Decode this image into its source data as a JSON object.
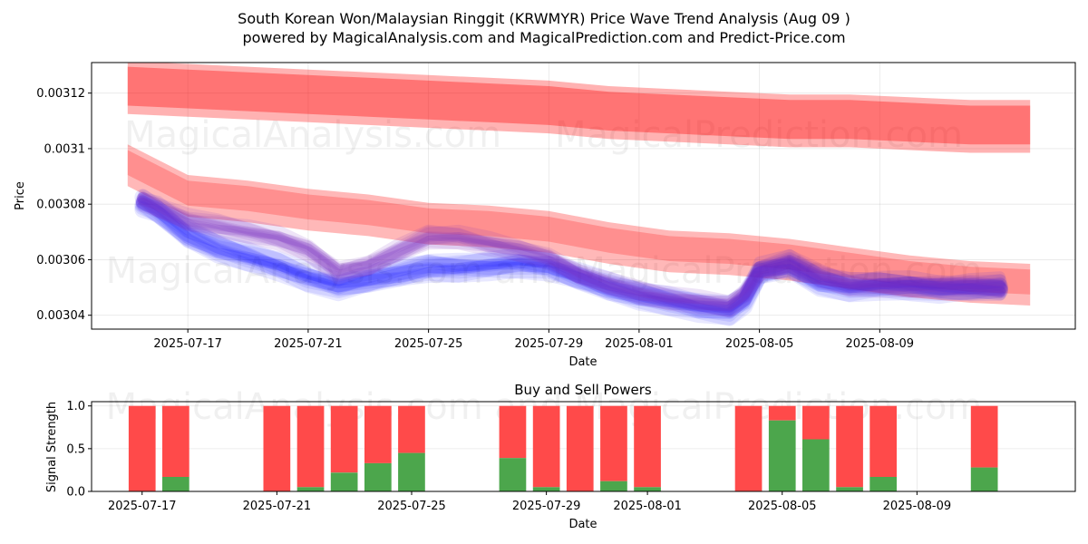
{
  "title_line1": "South Korean Won/Malaysian Ringgit (KRWMYR) Price Wave Trend Analysis (Aug 09 )",
  "title_line2": "powered by MagicalAnalysis.com and MagicalPrediction.com and Predict-Price.com",
  "watermarks": {
    "top_left": "MagicalAnalysis.com",
    "top_right": "MagicalPrediction.com",
    "mid": "MagicalAnalysis.com and MagicalPrediction.com",
    "bottom": "MagicalAnalysis.com and MagicalPrediction.com"
  },
  "colors": {
    "red": "#ff0000",
    "blue": "#0000ff",
    "purple": "#7b2fbe",
    "buy": "#4ca64c",
    "sell": "#ff4a4a"
  },
  "chart_data": [
    {
      "type": "line",
      "title": "",
      "xlabel": "Date",
      "ylabel": "Price",
      "xlim": [
        -3.2,
        29.5
      ],
      "ylim": [
        0.003035,
        0.003131
      ],
      "x_ticks": [
        {
          "d": 0,
          "label": "2025-07-17"
        },
        {
          "d": 4,
          "label": "2025-07-21"
        },
        {
          "d": 8,
          "label": "2025-07-25"
        },
        {
          "d": 12,
          "label": "2025-07-29"
        },
        {
          "d": 15,
          "label": "2025-08-01"
        },
        {
          "d": 19,
          "label": "2025-08-05"
        },
        {
          "d": 23,
          "label": "2025-08-09"
        }
      ],
      "y_ticks": [
        {
          "v": 0.00304,
          "label": "0.00304"
        },
        {
          "v": 0.00306,
          "label": "0.00306"
        },
        {
          "v": 0.00308,
          "label": "0.00308"
        },
        {
          "v": 0.0031,
          "label": "0.0031"
        },
        {
          "v": 0.00312,
          "label": "0.00312"
        }
      ],
      "red_upper_band": {
        "x": [
          -2,
          0,
          2,
          4,
          6,
          8,
          10,
          12,
          14,
          16,
          18,
          20,
          22,
          24,
          26,
          28
        ],
        "center": [
          0.003122,
          0.003121,
          0.00312,
          0.003119,
          0.003118,
          0.003117,
          0.003116,
          0.003115,
          0.003113,
          0.003112,
          0.003111,
          0.00311,
          0.00311,
          0.003109,
          0.003108,
          0.003108
        ],
        "half_width": 8e-06
      },
      "red_lower_band": {
        "x": [
          -2,
          0,
          2,
          4,
          6,
          8,
          10,
          12,
          14,
          16,
          18,
          20,
          22,
          24,
          26,
          28
        ],
        "center": [
          0.003094,
          0.003083,
          0.003081,
          0.003078,
          0.003076,
          0.003073,
          0.003072,
          0.00307,
          0.003066,
          0.003063,
          0.003062,
          0.00306,
          0.003057,
          0.003054,
          0.003052,
          0.003051
        ],
        "half_width": 6e-06
      },
      "blue_mean": {
        "x": [
          -1.5,
          -1,
          0,
          1,
          2,
          3,
          4,
          5,
          6,
          7,
          8,
          9,
          10,
          11,
          12,
          13,
          14,
          15,
          16,
          17,
          18,
          18.5,
          19,
          20,
          21,
          22,
          23,
          24,
          25,
          26,
          27
        ],
        "y": [
          0.003081,
          0.003078,
          0.003069,
          0.003064,
          0.003061,
          0.003058,
          0.003054,
          0.003051,
          0.003053,
          0.003055,
          0.003057,
          0.003057,
          0.003058,
          0.003059,
          0.003058,
          0.003054,
          0.00305,
          0.003047,
          0.003045,
          0.003043,
          0.003042,
          0.003046,
          0.003056,
          0.003058,
          0.003052,
          0.00305,
          0.003051,
          0.003051,
          0.00305,
          0.00305,
          0.00305
        ]
      },
      "purple_mean": {
        "x": [
          -1.5,
          -1,
          0,
          1,
          2,
          3,
          4,
          5,
          6,
          7,
          8,
          9,
          10,
          11,
          12,
          13,
          14,
          15,
          16,
          17,
          18,
          18.5,
          19,
          20,
          21,
          22,
          23,
          24,
          25,
          26,
          27
        ],
        "y": [
          0.003082,
          0.003079,
          0.003074,
          0.003072,
          0.00307,
          0.003068,
          0.003064,
          0.003056,
          0.003058,
          0.003063,
          0.003068,
          0.003068,
          0.003066,
          0.003064,
          0.003061,
          0.003055,
          0.003051,
          0.003048,
          0.003046,
          0.003045,
          0.003044,
          0.003048,
          0.003056,
          0.003059,
          0.003054,
          0.003051,
          0.003051,
          0.003051,
          0.003051,
          0.003051,
          0.00305
        ]
      }
    },
    {
      "type": "bar",
      "title": "Buy and Sell Powers",
      "xlabel": "Date",
      "ylabel": "Signal Strength",
      "xlim": [
        -1.5,
        27.7
      ],
      "ylim": [
        0,
        1.05
      ],
      "y_ticks": [
        {
          "v": 0,
          "label": "0.0"
        },
        {
          "v": 0.5,
          "label": "0.5"
        },
        {
          "v": 1,
          "label": "1.0"
        }
      ],
      "x_ticks": [
        {
          "d": 0,
          "label": "2025-07-17"
        },
        {
          "d": 4,
          "label": "2025-07-21"
        },
        {
          "d": 8,
          "label": "2025-07-25"
        },
        {
          "d": 12,
          "label": "2025-07-29"
        },
        {
          "d": 15,
          "label": "2025-08-01"
        },
        {
          "d": 19,
          "label": "2025-08-05"
        },
        {
          "d": 23,
          "label": "2025-08-09"
        }
      ],
      "bars": [
        {
          "d": 0,
          "buy": 0.0
        },
        {
          "d": 1,
          "buy": 0.17
        },
        {
          "d": 4,
          "buy": 0.0
        },
        {
          "d": 5,
          "buy": 0.05
        },
        {
          "d": 6,
          "buy": 0.22
        },
        {
          "d": 7,
          "buy": 0.33
        },
        {
          "d": 8,
          "buy": 0.45
        },
        {
          "d": 11,
          "buy": 0.39
        },
        {
          "d": 12,
          "buy": 0.05
        },
        {
          "d": 13,
          "buy": 0.0
        },
        {
          "d": 14,
          "buy": 0.12
        },
        {
          "d": 15,
          "buy": 0.05
        },
        {
          "d": 18,
          "buy": 0.0
        },
        {
          "d": 19,
          "buy": 0.83
        },
        {
          "d": 20,
          "buy": 0.61
        },
        {
          "d": 21,
          "buy": 0.05
        },
        {
          "d": 22,
          "buy": 0.17
        },
        {
          "d": 25,
          "buy": 0.28
        }
      ]
    }
  ]
}
